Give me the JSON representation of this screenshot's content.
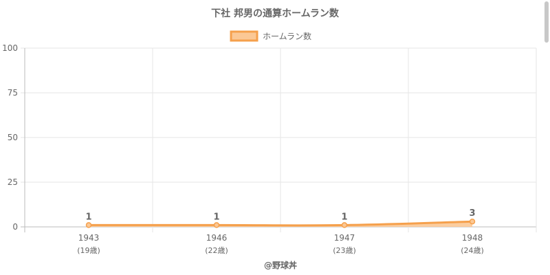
{
  "chart_data": {
    "type": "line",
    "title": "下社 邦男の通算ホームラン数",
    "legend": {
      "position": "top",
      "label": "ホームラン数"
    },
    "series": [
      {
        "name": "ホームラン数",
        "values": [
          1,
          1,
          1,
          3
        ]
      }
    ],
    "categories": [
      "1943",
      "1946",
      "1947",
      "1948"
    ],
    "category_sublabels": [
      "(19歳)",
      "(22歳)",
      "(23歳)",
      "(24歳)"
    ],
    "data_labels": [
      "1",
      "1",
      "1",
      "3"
    ],
    "ylim": [
      0,
      100
    ],
    "yticks": [
      "0",
      "25",
      "50",
      "75",
      "100"
    ],
    "grid": true,
    "colors": {
      "line": "#f5a04c",
      "fill": "#fbc895",
      "grid": "#e5e5e5",
      "text": "#666666"
    }
  },
  "footer": {
    "credit": "@野球丼"
  }
}
